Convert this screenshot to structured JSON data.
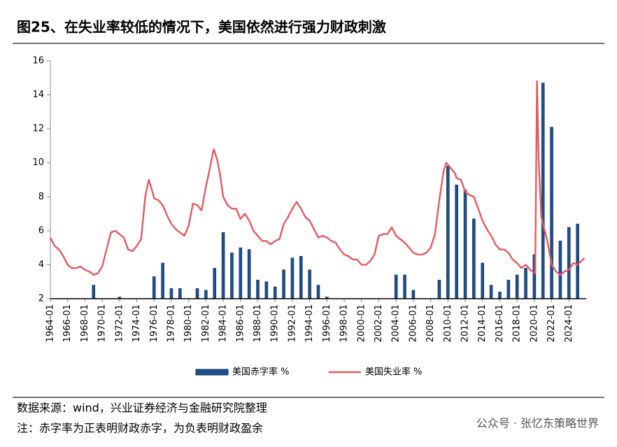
{
  "chart_data": {
    "type": "combo",
    "title": "图25、在失业率较低的情况下，美国依然进行强力财政刺激",
    "source": "数据来源：wind，兴业证券经济与金融研究院整理",
    "note": "注：赤字率为正表明财政赤字，为负表明财政盈余",
    "watermark": "公众号 · 张忆东策略世界",
    "xlim": [
      1964,
      2026
    ],
    "ylim": [
      2,
      16
    ],
    "yticks": [
      2,
      4,
      6,
      8,
      10,
      12,
      14,
      16
    ],
    "xticks": [
      {
        "value": 1964,
        "label": "1964-01"
      },
      {
        "value": 1966,
        "label": "1966-01"
      },
      {
        "value": 1968,
        "label": "1968-01"
      },
      {
        "value": 1970,
        "label": "1970-01"
      },
      {
        "value": 1972,
        "label": "1972-01"
      },
      {
        "value": 1974,
        "label": "1974-01"
      },
      {
        "value": 1976,
        "label": "1976-01"
      },
      {
        "value": 1978,
        "label": "1978-01"
      },
      {
        "value": 1980,
        "label": "1980-01"
      },
      {
        "value": 1982,
        "label": "1982-01"
      },
      {
        "value": 1984,
        "label": "1984-01"
      },
      {
        "value": 1986,
        "label": "1986-01"
      },
      {
        "value": 1988,
        "label": "1988-01"
      },
      {
        "value": 1990,
        "label": "1990-01"
      },
      {
        "value": 1992,
        "label": "1992-01"
      },
      {
        "value": 1994,
        "label": "1994-01"
      },
      {
        "value": 1996,
        "label": "1996-01"
      },
      {
        "value": 1998,
        "label": "1998-01"
      },
      {
        "value": 2000,
        "label": "2000-01"
      },
      {
        "value": 2002,
        "label": "2002-01"
      },
      {
        "value": 2004,
        "label": "2004-01"
      },
      {
        "value": 2006,
        "label": "2006-01"
      },
      {
        "value": 2008,
        "label": "2008-01"
      },
      {
        "value": 2010,
        "label": "2010-01"
      },
      {
        "value": 2012,
        "label": "2012-01"
      },
      {
        "value": 2014,
        "label": "2014-01"
      },
      {
        "value": 2016,
        "label": "2016-01"
      },
      {
        "value": 2018,
        "label": "2018-01"
      },
      {
        "value": 2020,
        "label": "2020-01"
      },
      {
        "value": 2022,
        "label": "2022-01"
      },
      {
        "value": 2024,
        "label": "2024-01"
      }
    ],
    "series": [
      {
        "name": "美国赤字率 %",
        "type": "bar",
        "color": "#1f4e8c",
        "x": [
          1969,
          1972,
          1976,
          1977,
          1978,
          1979,
          1981,
          1982,
          1983,
          1984,
          1985,
          1986,
          1987,
          1988,
          1989,
          1990,
          1991,
          1992,
          1993,
          1994,
          1995,
          1996,
          2004,
          2005,
          2006,
          2009,
          2010,
          2011,
          2012,
          2013,
          2014,
          2015,
          2016,
          2017,
          2018,
          2019,
          2020,
          2021,
          2022,
          2023,
          2024,
          2025
        ],
        "values": [
          2.8,
          2.1,
          3.3,
          4.1,
          2.6,
          2.6,
          2.6,
          2.5,
          3.8,
          5.9,
          4.7,
          5.0,
          4.9,
          3.1,
          3.0,
          2.7,
          3.7,
          4.4,
          4.5,
          3.7,
          2.8,
          2.1,
          3.4,
          3.4,
          2.5,
          3.1,
          9.8,
          8.7,
          8.4,
          6.7,
          4.1,
          2.8,
          2.4,
          3.1,
          3.4,
          3.8,
          4.6,
          14.7,
          12.1,
          5.4,
          6.2,
          6.4
        ]
      },
      {
        "name": "美国失业率 %",
        "type": "line",
        "color": "#e8585e",
        "x": [
          1964,
          1964.5,
          1965,
          1965.5,
          1966,
          1966.5,
          1967,
          1967.5,
          1968,
          1968.5,
          1969,
          1969.5,
          1970,
          1970.5,
          1971,
          1971.5,
          1972,
          1972.5,
          1973,
          1973.5,
          1974,
          1974.5,
          1975,
          1975.4,
          1975.8,
          1976,
          1976.5,
          1977,
          1977.5,
          1978,
          1978.5,
          1979,
          1979.5,
          1980,
          1980.5,
          1981,
          1981.5,
          1982,
          1982.5,
          1982.9,
          1983.3,
          1983.6,
          1984,
          1984.5,
          1985,
          1985.5,
          1986,
          1986.5,
          1987,
          1987.5,
          1988,
          1988.5,
          1989,
          1989.5,
          1990,
          1990.5,
          1991,
          1991.5,
          1992,
          1992.5,
          1993,
          1993.5,
          1994,
          1994.5,
          1995,
          1995.5,
          1996,
          1996.5,
          1997,
          1997.5,
          1998,
          1998.5,
          1999,
          1999.5,
          2000,
          2000.5,
          2001,
          2001.5,
          2002,
          2002.5,
          2003,
          2003.5,
          2004,
          2004.5,
          2005,
          2005.5,
          2006,
          2006.5,
          2007,
          2007.5,
          2008,
          2008.5,
          2009,
          2009.5,
          2009.8,
          2010.3,
          2010.8,
          2011,
          2011.5,
          2012,
          2012.5,
          2013,
          2013.5,
          2014,
          2014.5,
          2015,
          2015.5,
          2016,
          2016.5,
          2017,
          2017.5,
          2018,
          2018.5,
          2019,
          2019.5,
          2020.1,
          2020.3,
          2020.5,
          2020.8,
          2021,
          2021.5,
          2022,
          2022.5,
          2023,
          2023.5,
          2024,
          2024.5,
          2025,
          2025.6,
          2025.8
        ],
        "values": [
          5.6,
          5.1,
          4.9,
          4.5,
          4.0,
          3.8,
          3.8,
          3.9,
          3.7,
          3.6,
          3.4,
          3.5,
          3.9,
          4.9,
          5.9,
          6.0,
          5.8,
          5.6,
          4.9,
          4.8,
          5.1,
          5.5,
          8.1,
          9.0,
          8.3,
          7.9,
          7.8,
          7.5,
          6.9,
          6.4,
          6.1,
          5.9,
          5.7,
          6.3,
          7.6,
          7.5,
          7.2,
          8.6,
          9.8,
          10.8,
          10.2,
          9.4,
          8.0,
          7.5,
          7.3,
          7.3,
          6.7,
          7.0,
          6.6,
          6.0,
          5.7,
          5.4,
          5.4,
          5.2,
          5.4,
          5.5,
          6.4,
          6.8,
          7.3,
          7.7,
          7.3,
          6.8,
          6.6,
          6.1,
          5.6,
          5.7,
          5.6,
          5.4,
          5.3,
          4.9,
          4.6,
          4.5,
          4.3,
          4.3,
          4.0,
          4.0,
          4.2,
          4.6,
          5.7,
          5.8,
          5.8,
          6.2,
          5.7,
          5.5,
          5.3,
          5.0,
          4.7,
          4.6,
          4.6,
          4.7,
          5.0,
          5.8,
          7.8,
          9.5,
          10.0,
          9.7,
          9.4,
          9.1,
          9.0,
          8.3,
          8.1,
          8.0,
          7.3,
          6.6,
          6.1,
          5.7,
          5.2,
          4.9,
          4.9,
          4.7,
          4.3,
          4.1,
          3.8,
          4.0,
          3.7,
          3.5,
          14.8,
          10.2,
          6.8,
          6.4,
          5.4,
          4.0,
          3.6,
          3.4,
          3.6,
          3.7,
          4.1,
          4.0,
          4.3,
          4.4
        ]
      }
    ]
  }
}
